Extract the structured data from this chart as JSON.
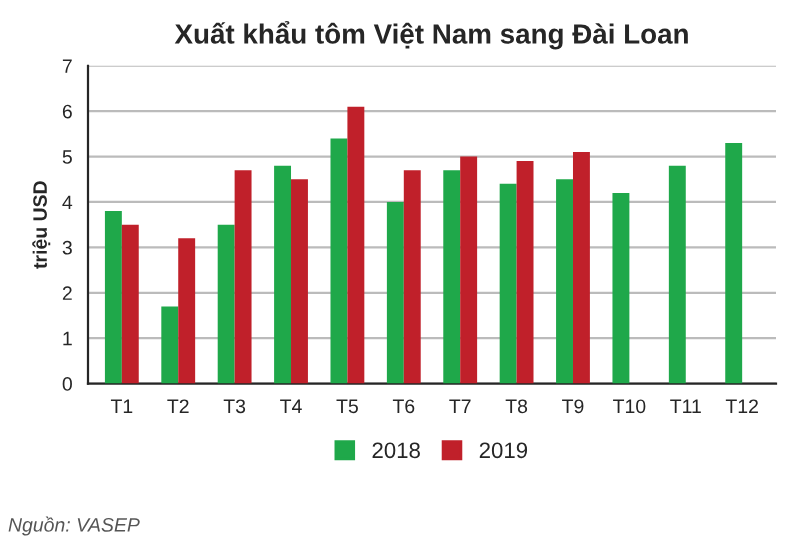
{
  "chart_data": {
    "type": "bar",
    "title": "Xuất khẩu tôm Việt Nam sang Đài Loan",
    "ylabel": "triệu USD",
    "categories": [
      "T1",
      "T2",
      "T3",
      "T4",
      "T5",
      "T6",
      "T7",
      "T8",
      "T9",
      "T10",
      "T11",
      "T12"
    ],
    "series": [
      {
        "name": "2018",
        "color": "#1fa84a",
        "values": [
          3.8,
          1.7,
          3.5,
          4.8,
          5.4,
          4.0,
          4.7,
          4.4,
          4.5,
          4.2,
          4.8,
          5.3
        ]
      },
      {
        "name": "2019",
        "color": "#c0202a",
        "values": [
          3.5,
          3.2,
          4.7,
          4.5,
          6.1,
          4.7,
          5.0,
          4.9,
          5.1,
          null,
          null,
          null
        ]
      }
    ],
    "ylim": [
      0,
      7
    ],
    "yticks": [
      0,
      1,
      2,
      3,
      4,
      5,
      6,
      7
    ],
    "grid": "y",
    "legend": "bottom",
    "annotations": [
      "Nguồn: VASEP"
    ]
  }
}
